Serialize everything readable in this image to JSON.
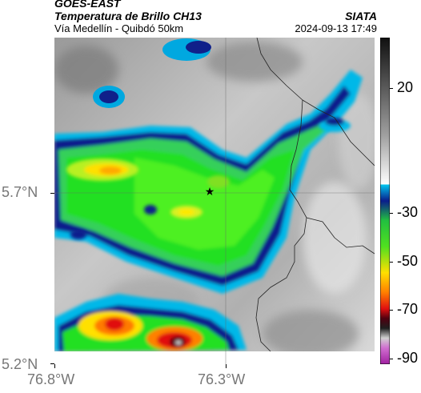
{
  "header": {
    "satellite": "GOES-EAST",
    "product": "Temperatura de Brillo CH13",
    "region": "Vía Medellín - Quibdó 50km",
    "organization": "SIATA",
    "datetime": "2024-09-13 17:49"
  },
  "axes": {
    "lat_labels": [
      "5.7°N",
      "5.2°N"
    ],
    "lon_labels": [
      "76.8°W",
      "76.3°W"
    ]
  },
  "colorbar": {
    "labels": [
      "20",
      "-30",
      "-50",
      "-70",
      "-90"
    ]
  },
  "marker": {
    "icon": "star-icon"
  }
}
